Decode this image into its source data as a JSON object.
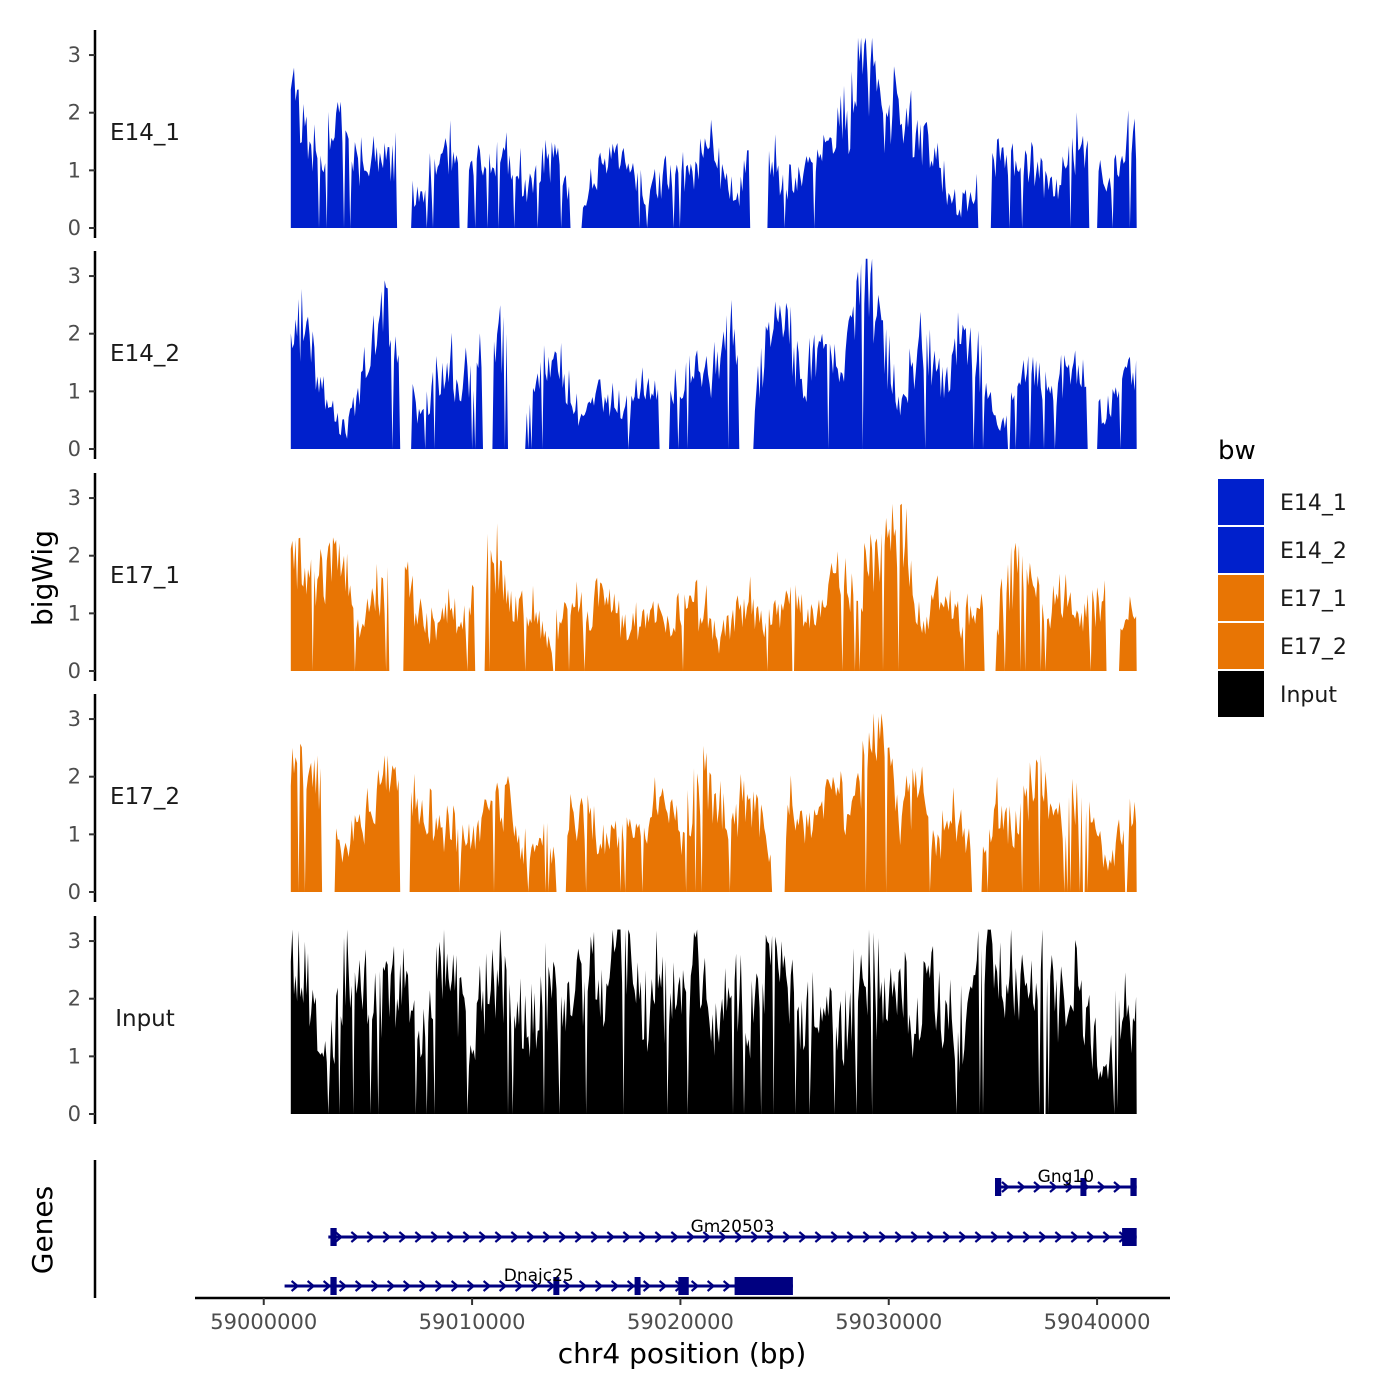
{
  "chart_data": {
    "type": "area",
    "subtype": "genome-browser-tracks",
    "y_axis_title": "bigWig",
    "x_axis_title": "chr4 position (bp)",
    "region": {
      "chrom": "chr4",
      "start": 59001300,
      "end": 59041900
    },
    "x_axis_range": [
      58996700,
      59043500
    ],
    "x_ticks": [
      59000000,
      59010000,
      59020000,
      59030000,
      59040000
    ],
    "x_tick_labels": [
      "59000000",
      "59010000",
      "59020000",
      "59030000",
      "59040000"
    ],
    "y_range": [
      0,
      3.4
    ],
    "y_ticks": [
      0,
      1,
      2,
      3
    ],
    "y_tick_labels": [
      "0",
      "1",
      "2",
      "3"
    ],
    "tracks": [
      {
        "name": "E14_1",
        "group": "E14",
        "color": "#0020cc",
        "peaks": [
          [
            59001400,
            2.6
          ],
          [
            59003600,
            2.0
          ],
          [
            59005200,
            1.3
          ],
          [
            59006000,
            1.4
          ],
          [
            59008800,
            1.4
          ],
          [
            59010200,
            1.2
          ],
          [
            59011500,
            1.4
          ],
          [
            59013700,
            1.3
          ],
          [
            59016900,
            1.4
          ],
          [
            59019800,
            1.1
          ],
          [
            59021400,
            1.4
          ],
          [
            59024000,
            1.4
          ],
          [
            59026000,
            1.1
          ],
          [
            59027700,
            2.3
          ],
          [
            59028900,
            3.3
          ],
          [
            59030300,
            2.6
          ],
          [
            59031500,
            1.8
          ],
          [
            59035500,
            1.4
          ],
          [
            59036800,
            1.0
          ],
          [
            59039300,
            1.6
          ],
          [
            59041800,
            1.9
          ]
        ],
        "gaps": [
          [
            59006400,
            59007100
          ],
          [
            59009400,
            59009800
          ],
          [
            59014700,
            59015300
          ],
          [
            59023300,
            59024100
          ],
          [
            59034300,
            59034900
          ],
          [
            59039600,
            59040000
          ]
        ]
      },
      {
        "name": "E14_2",
        "group": "E14",
        "color": "#0020cc",
        "peaks": [
          [
            59001700,
            2.6
          ],
          [
            59005900,
            2.8
          ],
          [
            59008800,
            1.5
          ],
          [
            59010200,
            1.5
          ],
          [
            59011300,
            2.2
          ],
          [
            59013700,
            1.6
          ],
          [
            59016200,
            0.9
          ],
          [
            59018400,
            1.1
          ],
          [
            59020700,
            1.6
          ],
          [
            59022400,
            2.0
          ],
          [
            59024800,
            2.5
          ],
          [
            59026800,
            2.0
          ],
          [
            59028900,
            3.3
          ],
          [
            59031800,
            2.0
          ],
          [
            59033700,
            2.1
          ],
          [
            59036900,
            1.6
          ],
          [
            59038900,
            1.5
          ],
          [
            59041600,
            1.6
          ]
        ],
        "gaps": [
          [
            59006500,
            59007000
          ],
          [
            59010500,
            59011000
          ],
          [
            59011700,
            59012500
          ],
          [
            59019000,
            59019500
          ],
          [
            59022800,
            59023500
          ],
          [
            59039500,
            59040000
          ]
        ]
      },
      {
        "name": "E17_1",
        "group": "E17",
        "color": "#e87504",
        "peaks": [
          [
            59001700,
            2.3
          ],
          [
            59003400,
            2.2
          ],
          [
            59005300,
            1.3
          ],
          [
            59006300,
            2.0
          ],
          [
            59009000,
            1.1
          ],
          [
            59010900,
            2.1
          ],
          [
            59012300,
            1.3
          ],
          [
            59014900,
            1.1
          ],
          [
            59016300,
            1.4
          ],
          [
            59018600,
            1.1
          ],
          [
            59020600,
            1.2
          ],
          [
            59023300,
            1.2
          ],
          [
            59025100,
            1.4
          ],
          [
            59027500,
            1.7
          ],
          [
            59029400,
            2.3
          ],
          [
            59030200,
            2.9
          ],
          [
            59032700,
            1.3
          ],
          [
            59034200,
            1.1
          ],
          [
            59036400,
            2.0
          ],
          [
            59038400,
            1.3
          ],
          [
            59040200,
            1.2
          ],
          [
            59041800,
            0.9
          ]
        ],
        "gaps": [
          [
            59006000,
            59006700
          ],
          [
            59010100,
            59010600
          ],
          [
            59034600,
            59035100
          ],
          [
            59040400,
            59041100
          ]
        ]
      },
      {
        "name": "E17_2",
        "group": "E17",
        "color": "#e87504",
        "peaks": [
          [
            59001400,
            2.5
          ],
          [
            59002400,
            2.3
          ],
          [
            59005100,
            1.4
          ],
          [
            59006200,
            2.2
          ],
          [
            59007600,
            1.6
          ],
          [
            59009300,
            1.1
          ],
          [
            59011200,
            1.9
          ],
          [
            59013400,
            0.8
          ],
          [
            59015200,
            1.5
          ],
          [
            59017400,
            1.3
          ],
          [
            59019200,
            1.6
          ],
          [
            59021200,
            2.1
          ],
          [
            59023200,
            1.7
          ],
          [
            59025400,
            1.5
          ],
          [
            59027300,
            2.0
          ],
          [
            59029300,
            3.1
          ],
          [
            59031200,
            1.8
          ],
          [
            59033200,
            1.3
          ],
          [
            59035400,
            1.5
          ],
          [
            59037100,
            2.3
          ],
          [
            59039000,
            1.9
          ],
          [
            59041900,
            1.2
          ]
        ],
        "gaps": [
          [
            59002800,
            59003400
          ],
          [
            59006500,
            59007000
          ],
          [
            59014000,
            59014500
          ],
          [
            59024400,
            59025000
          ],
          [
            59034000,
            59034500
          ]
        ]
      },
      {
        "name": "Input",
        "group": "Input",
        "color": "#000000",
        "peaks": [
          [
            59001500,
            2.4
          ],
          [
            59004500,
            2.3
          ],
          [
            59006400,
            2.0
          ],
          [
            59008700,
            2.2
          ],
          [
            59011300,
            2.2
          ],
          [
            59013800,
            2.0
          ],
          [
            59015400,
            2.3
          ],
          [
            59017000,
            3.2
          ],
          [
            59018800,
            1.9
          ],
          [
            59020500,
            2.4
          ],
          [
            59022400,
            2.0
          ],
          [
            59024600,
            2.9
          ],
          [
            59026800,
            1.6
          ],
          [
            59028900,
            2.2
          ],
          [
            59030300,
            2.1
          ],
          [
            59032200,
            1.8
          ],
          [
            59034700,
            2.9
          ],
          [
            59035800,
            2.4
          ],
          [
            59037300,
            2.5
          ],
          [
            59038700,
            1.9
          ],
          [
            59041000,
            0.1
          ],
          [
            59041600,
            1.6
          ]
        ],
        "gaps": []
      }
    ],
    "legend": {
      "title": "bw",
      "position": "right",
      "entries": [
        {
          "label": "E14_1",
          "color": "#0020cc"
        },
        {
          "label": "E14_2",
          "color": "#0020cc"
        },
        {
          "label": "E17_1",
          "color": "#e87504"
        },
        {
          "label": "E17_2",
          "color": "#e87504"
        },
        {
          "label": "Input",
          "color": "#000000"
        }
      ]
    },
    "genes_panel": {
      "title": "Genes",
      "color": "#000080",
      "genes": [
        {
          "name": "Gng10",
          "start": 59035100,
          "end": 59041900,
          "strand": "+",
          "exons": [
            [
              59035100,
              59035400
            ],
            [
              59039200,
              59039400
            ],
            [
              59041600,
              59041900
            ]
          ]
        },
        {
          "name": "Gm20503",
          "start": 59003100,
          "end": 59041900,
          "strand": "+",
          "exons": [
            [
              59003200,
              59003500
            ],
            [
              59041200,
              59041900
            ]
          ]
        },
        {
          "name": "Dnajc25",
          "start": 59001000,
          "end": 59025400,
          "strand": "+",
          "exons": [
            [
              59003200,
              59003500
            ],
            [
              59013900,
              59014100
            ],
            [
              59017800,
              59018000
            ],
            [
              59019900,
              59020400
            ],
            [
              59022600,
              59025400
            ]
          ]
        }
      ]
    }
  }
}
